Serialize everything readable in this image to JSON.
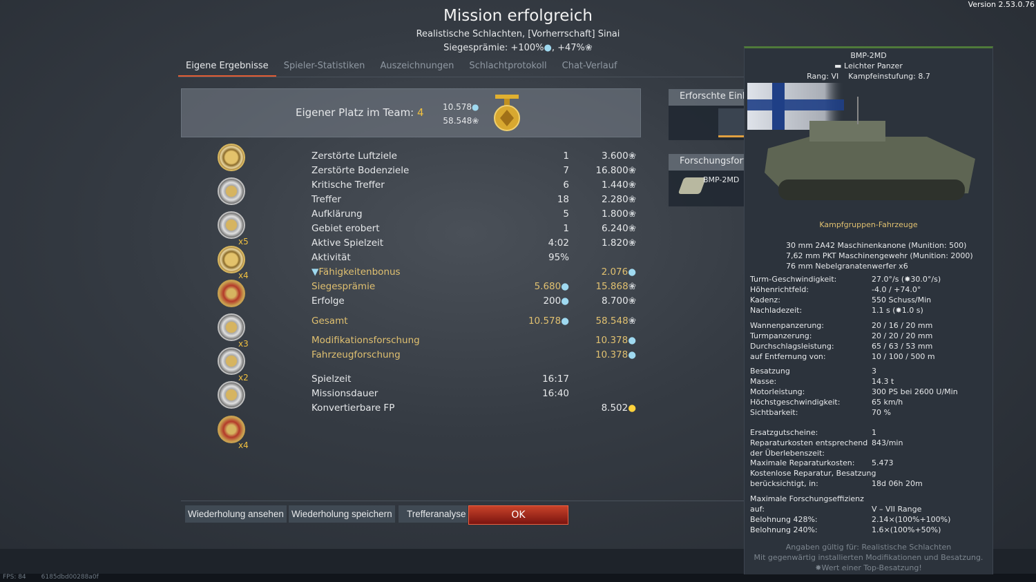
{
  "version": "Version 2.53.0.76",
  "header": {
    "title": "Mission erfolgreich",
    "subtitle": "Realistische Schlachten, [Vorherrschaft] Sinai",
    "bonus_label": "Siegesprämie:",
    "bonus_rp": "+100%",
    "bonus_sep": ",",
    "bonus_sl": "+47%"
  },
  "tabs": [
    {
      "label": "Eigene Ergebnisse",
      "active": true
    },
    {
      "label": "Spieler-Statistiken"
    },
    {
      "label": "Auszeichnungen"
    },
    {
      "label": "Schlachtprotokoll"
    },
    {
      "label": "Chat-Verlauf"
    }
  ],
  "place": {
    "label": "Eigener Platz im Team:",
    "value": "4",
    "rp": "10.578",
    "sl": "58.548"
  },
  "awards": [
    {
      "type": "gold"
    },
    {
      "type": "silver",
      "mult": "x5"
    },
    {
      "type": "silver",
      "mult": "x4"
    },
    {
      "type": "gold"
    },
    {
      "type": "red",
      "mult": "x3"
    },
    {
      "type": "silver",
      "mult": "x2"
    },
    {
      "type": "silver"
    },
    {
      "type": "silver",
      "mult": "x4"
    },
    {
      "type": "red"
    }
  ],
  "results": [
    {
      "label": "Zerstörte Luftziele",
      "count": "1",
      "reward": "3.600",
      "cur": "sl"
    },
    {
      "label": "Zerstörte Bodenziele",
      "count": "7",
      "reward": "16.800",
      "cur": "sl"
    },
    {
      "label": "Kritische Treffer",
      "count": "6",
      "reward": "1.440",
      "cur": "sl"
    },
    {
      "label": "Treffer",
      "count": "18",
      "reward": "2.280",
      "cur": "sl"
    },
    {
      "label": "Aufklärung",
      "count": "5",
      "reward": "1.800",
      "cur": "sl"
    },
    {
      "label": "Gebiet erobert",
      "count": "1",
      "reward": "6.240",
      "cur": "sl"
    },
    {
      "label": "Aktive Spielzeit",
      "count": "4:02",
      "reward": "1.820",
      "cur": "sl"
    },
    {
      "label": "Aktivität",
      "count": "95%",
      "reward": "",
      "cur": ""
    },
    {
      "label": "Fähigkeitenbonus",
      "count": "",
      "reward": "2.076",
      "cur": "rp",
      "gold": true,
      "icon": true
    },
    {
      "label": "Siegesprämie",
      "count": "5.680",
      "count_cur": "rp",
      "reward": "15.868",
      "cur": "sl",
      "gold": true
    },
    {
      "label": "Erfolge",
      "count": "200",
      "count_cur": "rp",
      "reward": "8.700",
      "cur": "sl"
    },
    {
      "label": "Gesamt",
      "count": "10.578",
      "count_cur": "rp",
      "reward": "58.548",
      "cur": "sl",
      "gold": true
    },
    {
      "label": "Modifikationsforschung",
      "count": "",
      "reward": "10.378",
      "cur": "rp",
      "gold": true
    },
    {
      "label": "Fahrzeugforschung",
      "count": "",
      "reward": "10.378",
      "cur": "rp",
      "gold": true
    },
    {
      "label": "Spielzeit",
      "count": "16:17",
      "reward": "",
      "cur": ""
    },
    {
      "label": "Missionsdauer",
      "count": "16:40",
      "reward": "",
      "cur": ""
    },
    {
      "label": "Konvertierbare FP",
      "count": "",
      "reward": "8.502",
      "cur": "gold"
    }
  ],
  "side": {
    "researched": "Erforschte Einheiten",
    "progress": "Forschungsfortschritt",
    "progress_vehicle": "BMP-2MD"
  },
  "buttons": {
    "replay_view": "Wiederholung ansehen",
    "replay_save": "Wiederholung speichern",
    "hit_analysis": "Trefferanalyse",
    "ok": "OK"
  },
  "status": {
    "fps": "FPS: 84",
    "session": "6185dbd00288a0f"
  },
  "tooltip": {
    "name": "BMP-2MD",
    "class": "Leichter Panzer",
    "rank_label": "Rang:",
    "rank": "VI",
    "br_label": "Kampfeinstufung:",
    "br": "8.7",
    "group": "Kampfgruppen-Fahrzeuge",
    "weapons": [
      "30 mm 2A42 Maschinenkanone (Munition: 500)",
      "7,62 mm PKT Maschinengewehr (Munition: 2000)",
      "76 mm Nebelgranatenwerfer x6"
    ],
    "stats": [
      {
        "k": "Turm-Geschwindigkeit:",
        "v": "27.0°/s (✸30.0°/s)"
      },
      {
        "k": "Höhenrichtfeld:",
        "v": "-4.0 / +74.0°"
      },
      {
        "k": "Kadenz:",
        "v": "550 Schuss/Min"
      },
      {
        "k": "Nachladezeit:",
        "v": "1.1 s (✸1.0 s)"
      },
      {
        "k": "Wannenpanzerung:",
        "v": "20 / 16 / 20 mm"
      },
      {
        "k": "Turmpanzerung:",
        "v": "20 / 20 / 20 mm"
      },
      {
        "k": "Durchschlagsleistung:",
        "v": "65 / 63 / 53 mm"
      },
      {
        "k": "auf Entfernung von:",
        "v": "10 / 100 / 500 m"
      },
      {
        "k": "Besatzung",
        "v": "3"
      },
      {
        "k": "Masse:",
        "v": "14.3 t"
      },
      {
        "k": "Motorleistung:",
        "v": "300 PS bei 2600 U/Min"
      },
      {
        "k": "Höchstgeschwindigkeit:",
        "v": "65 km/h"
      },
      {
        "k": "Sichtbarkeit:",
        "v": "70 %"
      },
      {
        "k": "Ersatzgutscheine:",
        "v": "1"
      },
      {
        "k": "Reparaturkosten entsprechend",
        "v": "843/min"
      },
      {
        "k": "der Überlebenszeit:",
        "v": ""
      },
      {
        "k": "Maximale Reparaturkosten:",
        "v": "5.473"
      },
      {
        "k": "Kostenlose Reparatur, Besatzung",
        "v": ""
      },
      {
        "k": "berücksichtigt, in:",
        "v": "18d 06h 20m"
      },
      {
        "k": "Maximale Forschungseffizienz",
        "v": ""
      },
      {
        "k": "auf:",
        "v": "V – VII Range"
      },
      {
        "k": "Belohnung 428%:",
        "v": "2.14×(100%+100%)"
      },
      {
        "k": "Belohnung 240%:",
        "v": "1.6×(100%+50%)"
      }
    ],
    "notes": [
      "Angaben gültig für: Realistische Schlachten",
      "Mit gegenwärtig installierten Modifikationen und Besatzung.",
      "✸Wert einer Top-Besatzung!"
    ]
  }
}
